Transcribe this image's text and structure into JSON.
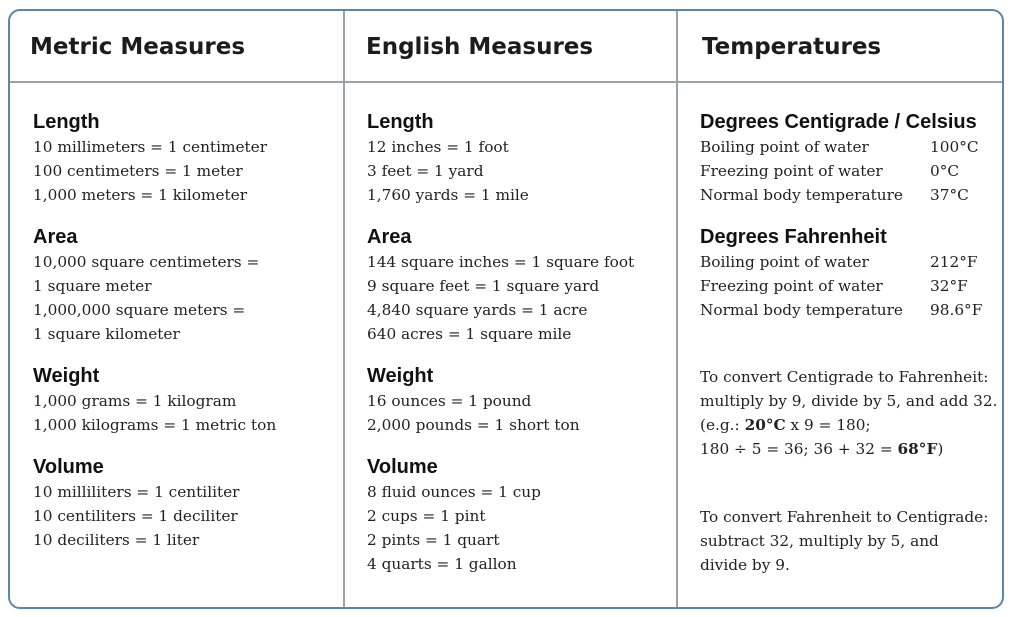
{
  "metric": {
    "header": "Metric Measures",
    "length": {
      "title": "Length",
      "lines": [
        "10 millimeters = 1 centimeter",
        "100 centimeters = 1 meter",
        "1,000 meters = 1 kilometer"
      ]
    },
    "area": {
      "title": "Area",
      "lines": [
        "10,000 square centimeters =",
        "1 square meter",
        "1,000,000 square meters =",
        "1 square kilometer"
      ]
    },
    "weight": {
      "title": "Weight",
      "lines": [
        "1,000 grams = 1 kilogram",
        "1,000 kilograms = 1 metric ton"
      ]
    },
    "volume": {
      "title": "Volume",
      "lines": [
        "10 milliliters = 1 centiliter",
        "10 centiliters = 1 deciliter",
        "10 deciliters = 1 liter"
      ]
    }
  },
  "english": {
    "header": "English Measures",
    "length": {
      "title": "Length",
      "lines": [
        "12 inches = 1 foot",
        "3 feet = 1 yard",
        "1,760 yards = 1 mile"
      ]
    },
    "area": {
      "title": "Area",
      "lines": [
        "144 square inches = 1 square foot",
        "9 square feet = 1 square yard",
        "4,840 square yards = 1 acre",
        "640 acres = 1 square mile"
      ]
    },
    "weight": {
      "title": "Weight",
      "lines": [
        "16 ounces = 1 pound",
        "2,000 pounds = 1 short ton"
      ]
    },
    "volume": {
      "title": "Volume",
      "lines": [
        "8 fluid ounces = 1 cup",
        "2 cups = 1 pint",
        "2 pints = 1 quart",
        "4 quarts = 1 gallon"
      ]
    }
  },
  "temps": {
    "header": "Temperatures",
    "celsius": {
      "title": "Degrees Centigrade / Celsius",
      "rows": [
        {
          "label": "Boiling point of water",
          "value": "100°C"
        },
        {
          "label": "Freezing point of water",
          "value": "0°C"
        },
        {
          "label": "Normal body temperature",
          "value": "37°C"
        }
      ]
    },
    "fahrenheit": {
      "title": "Degrees Fahrenheit",
      "rows": [
        {
          "label": "Boiling point of water",
          "value": "212°F"
        },
        {
          "label": "Freezing point of water",
          "value": "32°F"
        },
        {
          "label": "Normal body temperature",
          "value": "98.6°F"
        }
      ]
    },
    "c_to_f": {
      "line1": "To convert Centigrade to Fahrenheit:",
      "line2": "multiply by 9, divide by 5, and add 32.",
      "line3_pre": "(e.g.: ",
      "line3_bold": "20°C",
      "line3_post": " x 9 = 180;",
      "line4_pre": "180 ÷ 5 = 36; 36 + 32 = ",
      "line4_bold": "68°F",
      "line4_post": ")"
    },
    "f_to_c": {
      "line1": "To convert Fahrenheit to Centigrade:",
      "line2": "subtract 32, multiply by 5, and",
      "line3": "divide by 9."
    }
  }
}
